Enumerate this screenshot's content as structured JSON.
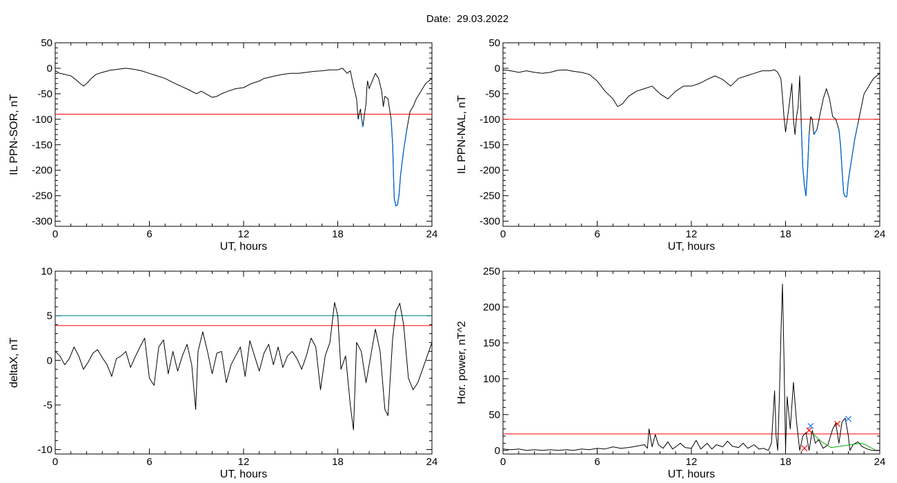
{
  "figure": {
    "title": "Date:  29.03.2022"
  },
  "chart_data": [
    {
      "id": "sor",
      "type": "line",
      "xlabel": "UT, hours",
      "ylabel": "IL PPN-SOR, nT",
      "xlim": [
        0,
        24
      ],
      "ylim": [
        -310,
        50
      ],
      "xticks": [
        0,
        6,
        12,
        18,
        24
      ],
      "yticks": [
        50,
        0,
        -50,
        -100,
        -150,
        -200,
        -250,
        -300
      ],
      "threshold_lines": [
        {
          "y": -90,
          "color": "#ff0000"
        }
      ],
      "highlight_color": "#0066cc",
      "highlight_below": -90,
      "series": [
        {
          "color": "#000000",
          "x": [
            0,
            0.3,
            0.6,
            1,
            1.3,
            1.6,
            1.8,
            2.0,
            2.3,
            2.6,
            3.0,
            3.5,
            4.0,
            4.5,
            5.0,
            5.5,
            6.0,
            6.5,
            7.0,
            7.5,
            8.0,
            8.5,
            9.0,
            9.3,
            9.6,
            10.0,
            10.3,
            10.6,
            11.0,
            11.5,
            12.0,
            12.5,
            13.0,
            13.3,
            13.6,
            14.0,
            14.5,
            15.0,
            15.5,
            16.0,
            16.5,
            17.0,
            17.5,
            18.0,
            18.3,
            18.6,
            18.8,
            19.0,
            19.2,
            19.3,
            19.4,
            19.45,
            19.5,
            19.6,
            19.7,
            19.8,
            19.85,
            19.9,
            20.0,
            20.2,
            20.4,
            20.6,
            20.8,
            20.9,
            21.0,
            21.2,
            21.4,
            21.5,
            21.55,
            21.6,
            21.7,
            21.8,
            21.9,
            22.0,
            22.2,
            22.4,
            22.6,
            22.8,
            23.0,
            23.3,
            23.6,
            24.0
          ],
          "y": [
            -5,
            -10,
            -12,
            -15,
            -22,
            -30,
            -35,
            -30,
            -20,
            -12,
            -8,
            -4,
            -2,
            0,
            -2,
            -5,
            -10,
            -15,
            -20,
            -28,
            -35,
            -42,
            -50,
            -45,
            -50,
            -57,
            -55,
            -50,
            -45,
            -40,
            -38,
            -30,
            -25,
            -20,
            -18,
            -15,
            -12,
            -10,
            -10,
            -8,
            -6,
            -5,
            -3,
            -3,
            0,
            -10,
            -5,
            -35,
            -60,
            -100,
            -85,
            -80,
            -95,
            -115,
            -90,
            -70,
            -40,
            -25,
            -40,
            -25,
            -10,
            -20,
            -45,
            -75,
            -55,
            -60,
            -100,
            -150,
            -210,
            -255,
            -270,
            -268,
            -250,
            -210,
            -160,
            -120,
            -85,
            -75,
            -60,
            -45,
            -30,
            -20
          ]
        }
      ]
    },
    {
      "id": "nal",
      "type": "line",
      "xlabel": "UT, hours",
      "ylabel": "IL PPN-NAL, nT",
      "xlim": [
        0,
        24
      ],
      "ylim": [
        -310,
        50
      ],
      "xticks": [
        0,
        6,
        12,
        18,
        24
      ],
      "yticks": [
        50,
        0,
        -50,
        -100,
        -150,
        -200,
        -250,
        -300
      ],
      "threshold_lines": [
        {
          "y": -100,
          "color": "#ff0000"
        }
      ],
      "highlight_color": "#0066cc",
      "highlight_below": -100,
      "series": [
        {
          "color": "#000000",
          "x": [
            0,
            0.5,
            1.0,
            1.5,
            2.0,
            2.5,
            3.0,
            3.5,
            4.0,
            4.5,
            5.0,
            5.5,
            6.0,
            6.5,
            7.0,
            7.3,
            7.6,
            8.0,
            8.5,
            9.0,
            9.5,
            10.0,
            10.5,
            11.0,
            11.5,
            12.0,
            12.5,
            13.0,
            13.5,
            14.0,
            14.5,
            15.0,
            15.5,
            16.0,
            16.5,
            17.0,
            17.3,
            17.5,
            17.7,
            17.8,
            17.9,
            18.0,
            18.2,
            18.4,
            18.5,
            18.6,
            18.7,
            18.8,
            18.9,
            19.0,
            19.1,
            19.2,
            19.3,
            19.4,
            19.5,
            19.6,
            19.7,
            19.8,
            20.0,
            20.2,
            20.4,
            20.6,
            20.8,
            21.0,
            21.2,
            21.4,
            21.5,
            21.6,
            21.7,
            21.8,
            21.9,
            22.0,
            22.2,
            22.4,
            22.6,
            22.8,
            23.0,
            23.3,
            23.6,
            24.0
          ],
          "y": [
            -3,
            -5,
            -8,
            -5,
            -8,
            -10,
            -8,
            -4,
            -3,
            -6,
            -8,
            -12,
            -25,
            -45,
            -60,
            -75,
            -70,
            -55,
            -45,
            -40,
            -35,
            -50,
            -60,
            -45,
            -35,
            -35,
            -30,
            -22,
            -15,
            -22,
            -35,
            -20,
            -15,
            -10,
            -5,
            -5,
            -3,
            -8,
            -20,
            -55,
            -95,
            -125,
            -80,
            -30,
            -100,
            -130,
            -95,
            -75,
            -15,
            -110,
            -195,
            -230,
            -250,
            -200,
            -130,
            -95,
            -100,
            -130,
            -120,
            -90,
            -60,
            -40,
            -60,
            -95,
            -100,
            -120,
            -150,
            -200,
            -245,
            -252,
            -252,
            -220,
            -180,
            -140,
            -110,
            -80,
            -50,
            -35,
            -20,
            -10
          ]
        }
      ]
    },
    {
      "id": "deltax",
      "type": "line",
      "xlabel": "UT, hours",
      "ylabel": "deltaX, nT",
      "xlim": [
        0,
        24
      ],
      "ylim": [
        -10.5,
        10
      ],
      "xticks": [
        0,
        6,
        12,
        18,
        24
      ],
      "yticks": [
        10,
        5,
        0,
        -5,
        -10
      ],
      "threshold_lines": [
        {
          "y": 5,
          "color": "#008080"
        },
        {
          "y": 3.9,
          "color": "#ff0000"
        }
      ],
      "series": [
        {
          "color": "#000000",
          "x": [
            0,
            0.3,
            0.6,
            0.9,
            1.2,
            1.5,
            1.8,
            2.1,
            2.4,
            2.7,
            3.0,
            3.3,
            3.6,
            3.9,
            4.2,
            4.5,
            4.8,
            5.1,
            5.4,
            5.7,
            6.0,
            6.3,
            6.6,
            6.9,
            7.2,
            7.5,
            7.8,
            8.1,
            8.4,
            8.7,
            8.95,
            9.1,
            9.4,
            9.7,
            10.0,
            10.3,
            10.6,
            10.9,
            11.2,
            11.5,
            11.8,
            12.1,
            12.4,
            12.7,
            13.0,
            13.3,
            13.6,
            13.9,
            14.2,
            14.5,
            14.8,
            15.1,
            15.4,
            15.7,
            16.0,
            16.3,
            16.6,
            16.9,
            17.2,
            17.5,
            17.8,
            18.0,
            18.2,
            18.5,
            18.8,
            19.0,
            19.2,
            19.5,
            19.8,
            20.1,
            20.4,
            20.7,
            21.0,
            21.2,
            21.5,
            21.7,
            21.95,
            22.2,
            22.5,
            22.8,
            23.1,
            23.4,
            23.7,
            24.0
          ],
          "y": [
            1,
            0.5,
            -0.5,
            0.2,
            1.5,
            0.5,
            -1.0,
            -0.2,
            0.8,
            1.2,
            0.3,
            -0.5,
            -1.8,
            0.2,
            0.5,
            1.0,
            -0.8,
            0.4,
            1.5,
            2.5,
            -2.0,
            -2.8,
            1.5,
            2.3,
            -1.5,
            1.0,
            -1.2,
            0.5,
            1.8,
            -0.5,
            -5.5,
            1.0,
            3.2,
            1.0,
            -1.5,
            0.8,
            1.0,
            -2.5,
            -0.5,
            0.5,
            1.5,
            -1.8,
            2.2,
            0.5,
            -1.2,
            0.8,
            1.8,
            -0.5,
            1.5,
            -0.8,
            0.5,
            1.0,
            0.2,
            -1.0,
            0.5,
            2.5,
            1.5,
            -3.3,
            0.5,
            2.0,
            6.5,
            5.0,
            -1.0,
            0.5,
            -5.0,
            -7.8,
            2.0,
            1.0,
            -2.5,
            0.5,
            3.5,
            1.0,
            -5.5,
            -6.2,
            2.5,
            5.5,
            6.4,
            4.0,
            -2.0,
            -3.3,
            -2.5,
            -1.0,
            0.5,
            2.0
          ]
        }
      ]
    },
    {
      "id": "horpower",
      "type": "line",
      "xlabel": "UT, hours",
      "ylabel": "Hor. power, nT^2",
      "xlim": [
        0,
        24
      ],
      "ylim": [
        -5,
        250
      ],
      "xticks": [
        0,
        6,
        12,
        18,
        24
      ],
      "yticks": [
        250,
        200,
        150,
        100,
        50,
        0
      ],
      "threshold_lines": [
        {
          "y": 23,
          "color": "#ff0000"
        }
      ],
      "series": [
        {
          "color": "#000000",
          "x": [
            0,
            0.5,
            1.0,
            1.5,
            2.0,
            2.5,
            3.0,
            3.5,
            4.0,
            4.5,
            5.0,
            5.5,
            6.0,
            6.5,
            7.0,
            7.5,
            8.0,
            8.5,
            9.0,
            9.2,
            9.3,
            9.5,
            9.7,
            9.9,
            10.2,
            10.5,
            10.8,
            11.0,
            11.3,
            11.6,
            12.0,
            12.3,
            12.6,
            13.0,
            13.3,
            13.6,
            14.0,
            14.3,
            14.6,
            15.0,
            15.3,
            15.6,
            16.0,
            16.3,
            16.6,
            16.9,
            17.1,
            17.3,
            17.4,
            17.5,
            17.6,
            17.7,
            17.8,
            17.9,
            18.0,
            18.1,
            18.3,
            18.5,
            18.7,
            18.9,
            19.1,
            19.3,
            19.5,
            19.7,
            19.9,
            20.1,
            20.4,
            20.7,
            21.0,
            21.2,
            21.4,
            21.6,
            21.8,
            22.0,
            22.1,
            22.3,
            22.6,
            22.9,
            23.2,
            23.5,
            23.8,
            24.0
          ],
          "y": [
            2,
            1,
            2,
            0,
            1,
            0,
            1,
            0,
            1,
            0,
            2,
            1,
            3,
            2,
            5,
            3,
            4,
            6,
            8,
            3,
            30,
            5,
            22,
            8,
            3,
            12,
            2,
            5,
            10,
            4,
            3,
            14,
            2,
            10,
            2,
            8,
            5,
            13,
            6,
            4,
            10,
            3,
            8,
            2,
            3,
            0,
            10,
            83,
            20,
            0,
            70,
            160,
            232,
            130,
            0,
            75,
            30,
            95,
            40,
            0,
            20,
            25,
            0,
            28,
            10,
            15,
            3,
            8,
            30,
            38,
            10,
            40,
            45,
            20,
            0,
            8,
            12,
            5,
            2,
            0,
            0,
            0
          ]
        },
        {
          "color": "#00aa00",
          "x": [
            19.7,
            20.0,
            20.3,
            20.6,
            20.9,
            22.8,
            23.1,
            23.4,
            23.7
          ],
          "y": [
            24,
            18,
            12,
            8,
            4,
            10,
            8,
            4,
            1
          ]
        }
      ],
      "markers": [
        {
          "x": 19.2,
          "y": 3,
          "color": "#ff0000",
          "symbol": "x"
        },
        {
          "x": 19.5,
          "y": 28,
          "color": "#ff0000",
          "symbol": "x"
        },
        {
          "x": 19.6,
          "y": 34,
          "color": "#1e78ff",
          "symbol": "x"
        },
        {
          "x": 21.3,
          "y": 37,
          "color": "#ff0000",
          "symbol": "x"
        },
        {
          "x": 22.0,
          "y": 44,
          "color": "#1e78ff",
          "symbol": "x"
        }
      ]
    }
  ]
}
